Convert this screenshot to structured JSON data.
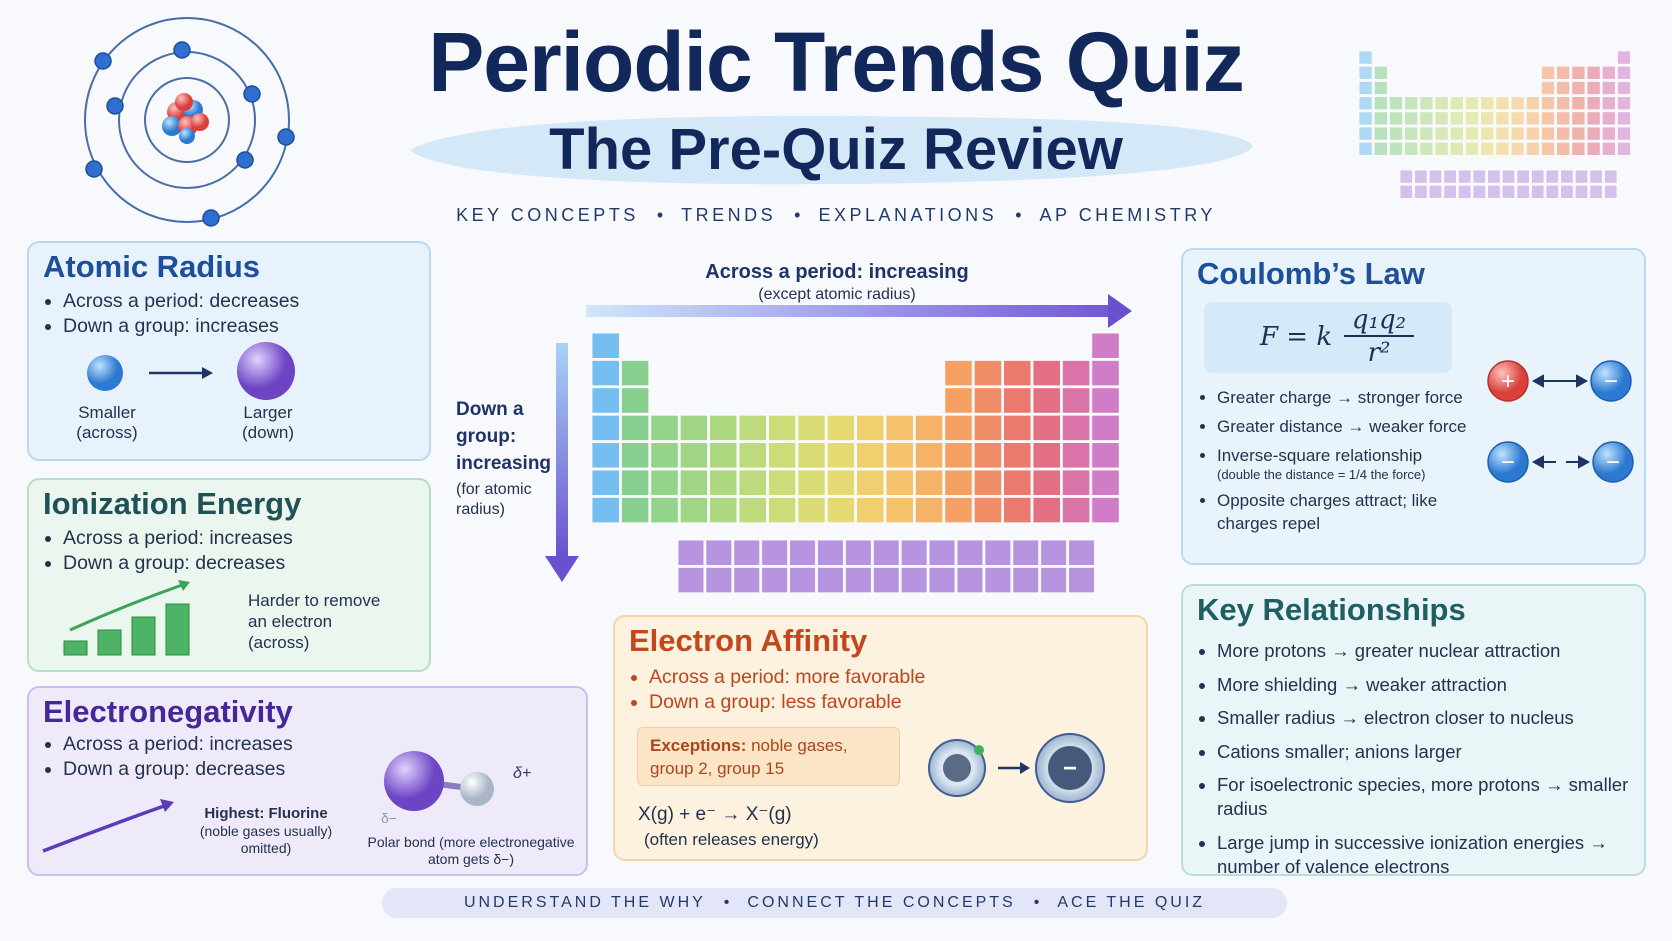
{
  "header": {
    "title": "Periodic Trends Quiz",
    "subtitle": "The Pre-Quiz Review",
    "tags": [
      "KEY CONCEPTS",
      "TRENDS",
      "EXPLANATIONS",
      "AP CHEMISTRY"
    ]
  },
  "atomic_radius": {
    "title": "Atomic Radius",
    "points": [
      "Across a period: decreases",
      "Down a group: increases"
    ],
    "labels": [
      {
        "main": "Smaller",
        "sub": "(across)"
      },
      {
        "main": "Larger",
        "sub": "(down)"
      }
    ]
  },
  "ionization_energy": {
    "title": "Ionization Energy",
    "points": [
      "Across a period: increases",
      "Down a group: decreases"
    ],
    "note": [
      "Harder to remove",
      "an electron",
      "(across)"
    ]
  },
  "electronegativity": {
    "title": "Electronegativity",
    "points": [
      "Across a period: increases",
      "Down a group: decreases"
    ],
    "highest": {
      "title": "Highest: Fluorine",
      "note": [
        "(noble gases usually)",
        "omitted)"
      ]
    },
    "polar": [
      "Polar bond (more electronegative",
      "atom gets δ−)"
    ],
    "delta_plus": "δ+",
    "delta_minus": "δ−"
  },
  "center": {
    "across": "Across a period: increasing",
    "across_note": "(except atomic radius)",
    "down": [
      "Down a",
      "group:",
      "increasing"
    ],
    "down_note": [
      "(for atomic",
      "radius)"
    ]
  },
  "electron_affinity": {
    "title": "Electron Affinity",
    "points": [
      "Across a period: more favorable",
      "Down a group: less favorable"
    ],
    "exceptions": {
      "label": "Exceptions:",
      "text": "noble gases, group 2, group 15"
    },
    "ion_charge": "−",
    "equation": "X(g) + e⁻ → X⁻(g)",
    "equation_note": "(often releases energy)"
  },
  "coulomb": {
    "title": "Coulomb’s Law",
    "formula": {
      "lhs": "F = k",
      "numerator": "q₁q₂",
      "denominator": "r²"
    },
    "points": [
      "Greater charge → stronger force",
      "Greater distance → weaker force",
      {
        "text": "Inverse-square relationship",
        "note": "(double the distance = 1/4 the force)"
      },
      "Opposite charges attract; like charges repel"
    ],
    "charges": [
      "+",
      "−",
      "−",
      "−"
    ]
  },
  "key_relationships": {
    "title": "Key Relationships",
    "points": [
      "More protons → greater nuclear attraction",
      "More shielding → weaker attraction",
      "Smaller radius → electron closer to nucleus",
      "Cations smaller; anions larger",
      "For isoelectronic species, more protons → smaller radius",
      "Large jump in successive ionization energies → number of valence electrons"
    ]
  },
  "footer": [
    "UNDERSTAND THE WHY",
    "CONNECT THE CONCEPTS",
    "ACE THE QUIZ"
  ]
}
